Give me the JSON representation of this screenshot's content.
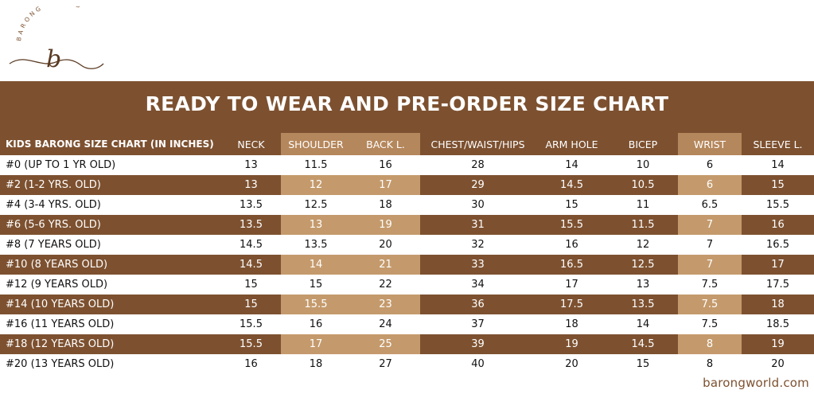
{
  "brand": {
    "name": "BARONG WORLD",
    "monogram": "b",
    "website": "barongworld.com"
  },
  "title": "READY TO WEAR AND PRE-ORDER SIZE CHART",
  "table": {
    "headers": [
      "KIDS BARONG SIZE CHART (IN INCHES)",
      "NECK",
      "SHOULDER",
      "BACK L.",
      "CHEST/WAIST/HIPS",
      "ARM HOLE",
      "BICEP",
      "WRIST",
      "SLEEVE L."
    ],
    "rows": [
      [
        "#0 (UP TO 1 YR OLD)",
        "13",
        "11.5",
        "16",
        "28",
        "14",
        "10",
        "6",
        "14"
      ],
      [
        "#2 (1-2 YRS. OLD)",
        "13",
        "12",
        "17",
        "29",
        "14.5",
        "10.5",
        "6",
        "15"
      ],
      [
        "#4 (3-4 YRS. OLD)",
        "13.5",
        "12.5",
        "18",
        "30",
        "15",
        "11",
        "6.5",
        "15.5"
      ],
      [
        "#6 (5-6 YRS. OLD)",
        "13.5",
        "13",
        "19",
        "31",
        "15.5",
        "11.5",
        "7",
        "16"
      ],
      [
        "#8 (7 YEARS OLD)",
        "14.5",
        "13.5",
        "20",
        "32",
        "16",
        "12",
        "7",
        "16.5"
      ],
      [
        "#10 (8 YEARS OLD)",
        "14.5",
        "14",
        "21",
        "33",
        "16.5",
        "12.5",
        "7",
        "17"
      ],
      [
        "#12 (9 YEARS OLD)",
        "15",
        "15",
        "22",
        "34",
        "17",
        "13",
        "7.5",
        "17.5"
      ],
      [
        "#14 (10 YEARS OLD)",
        "15",
        "15.5",
        "23",
        "36",
        "17.5",
        "13.5",
        "7.5",
        "18"
      ],
      [
        "#16 (11 YEARS OLD)",
        "15.5",
        "16",
        "24",
        "37",
        "18",
        "14",
        "7.5",
        "18.5"
      ],
      [
        "#18 (12 YEARS OLD)",
        "15.5",
        "17",
        "25",
        "39",
        "19",
        "14.5",
        "8",
        "19"
      ],
      [
        "#20 (13 YEARS OLD)",
        "16",
        "18",
        "27",
        "40",
        "20",
        "15",
        "8",
        "20"
      ]
    ]
  },
  "colors": {
    "brown": "#7d5130",
    "tan_header": "#b5875c",
    "tan_cell": "#c49a6c"
  }
}
